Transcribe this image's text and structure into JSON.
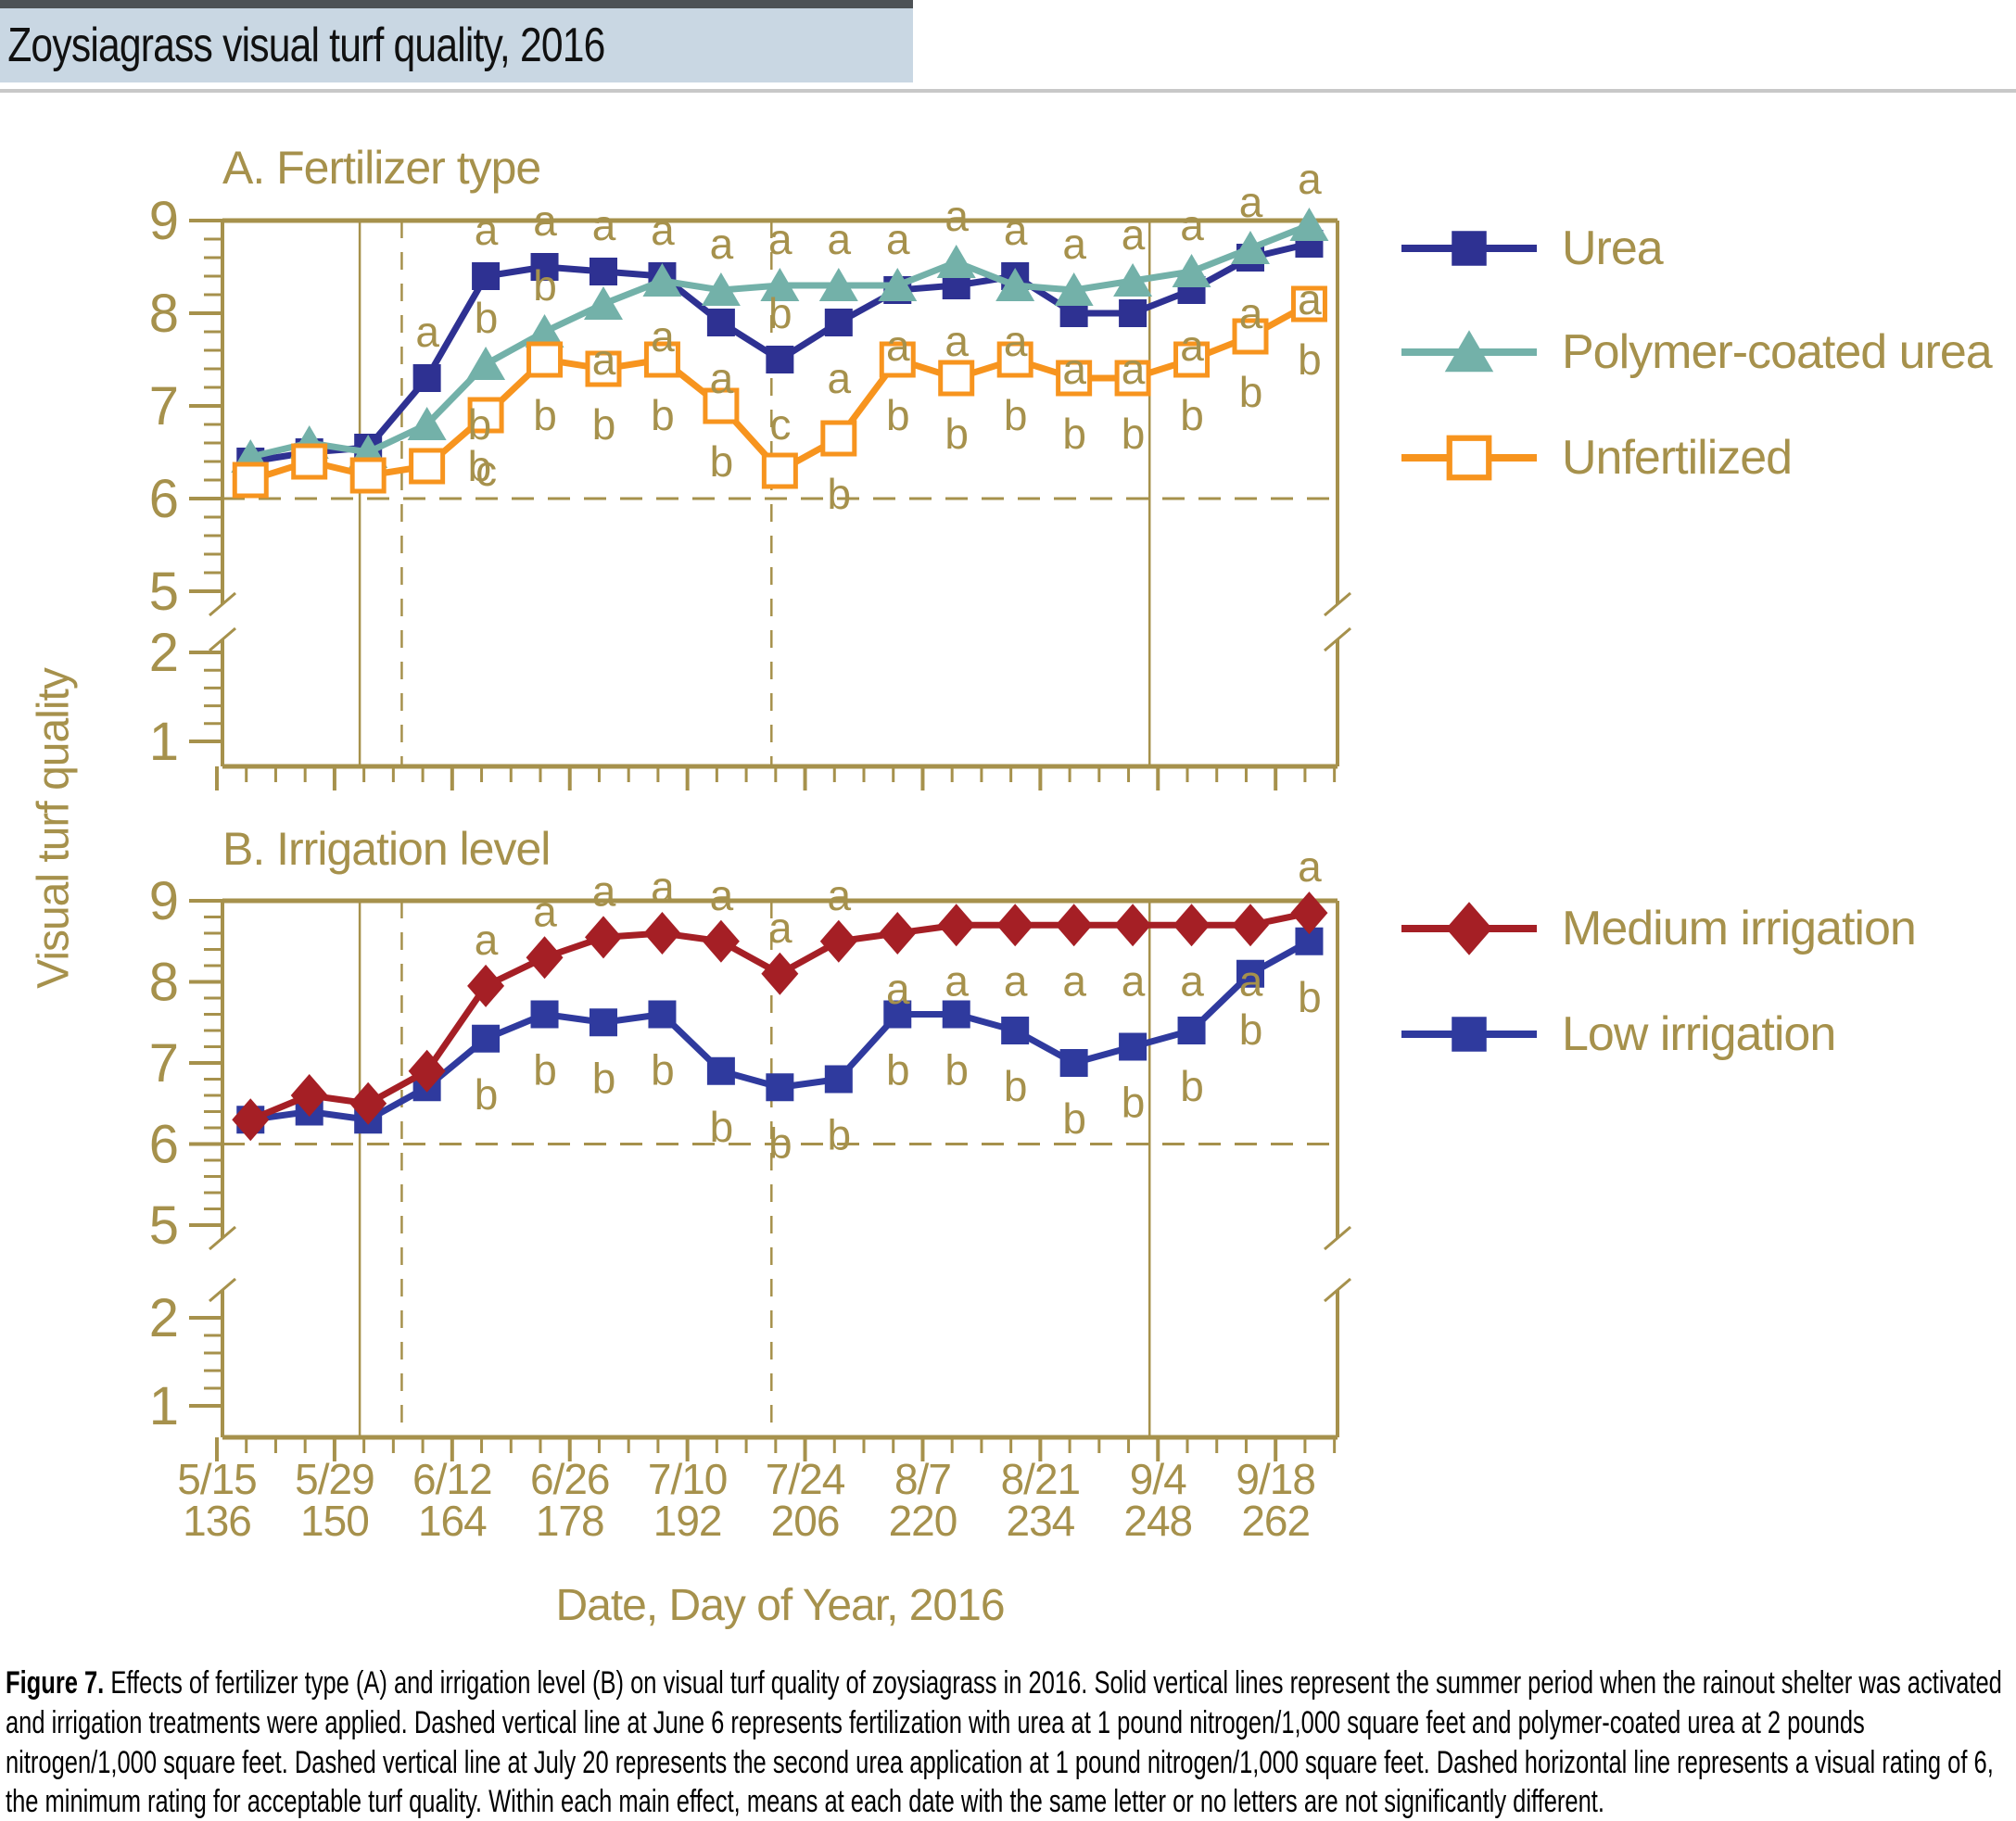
{
  "title": "Zoysiagrass visual turf quality, 2016",
  "y_axis_label": "Visual turf quality",
  "x_axis": {
    "title": "Date, Day of Year, 2016",
    "ticks": [
      {
        "date": "5/15",
        "day": 136
      },
      {
        "date": "5/29",
        "day": 150
      },
      {
        "date": "6/12",
        "day": 164
      },
      {
        "date": "6/26",
        "day": 178
      },
      {
        "date": "7/10",
        "day": 192
      },
      {
        "date": "7/24",
        "day": 206
      },
      {
        "date": "8/7",
        "day": 220
      },
      {
        "date": "8/21",
        "day": 234
      },
      {
        "date": "9/4",
        "day": 248
      },
      {
        "date": "9/18",
        "day": 262
      }
    ]
  },
  "y_ticks": [
    9,
    8,
    7,
    6,
    5,
    2,
    1
  ],
  "colors": {
    "gold": "#a6914c",
    "urea_blue": "#2e3192",
    "polymer_teal": "#73b1a9",
    "unfertilized_orange": "#f7941e",
    "medium_red": "#a51f25",
    "low_blue": "#2f3a9e",
    "title_band_bg": "#c9d7e3",
    "top_bar": "#4d5256",
    "divider": "#c8c8c8",
    "text_black": "#000000"
  },
  "chart_data": [
    {
      "id": "fertilizer",
      "type": "line",
      "title": "A. Fertilizer type",
      "ylabel": "Visual turf quality",
      "ylim_upper": [
        5,
        9
      ],
      "ylim_lower": [
        1,
        2
      ],
      "grid": false,
      "legend_position": "right",
      "x_days": [
        140,
        147,
        154,
        161,
        168,
        175,
        182,
        189,
        196,
        203,
        210,
        217,
        224,
        231,
        238,
        245,
        252,
        259,
        266
      ],
      "reference_lines": {
        "dashed_horizontal_value": 6,
        "solid_vertical_days": [
          153,
          247
        ],
        "dashed_vertical_days": [
          158,
          202
        ]
      },
      "series": [
        {
          "name": "Urea",
          "marker": "filled-square",
          "color": "#2e3192",
          "values": [
            6.4,
            6.5,
            6.55,
            7.3,
            8.4,
            8.5,
            8.45,
            8.4,
            7.9,
            7.5,
            7.9,
            8.25,
            8.3,
            8.4,
            8.0,
            8.0,
            8.25,
            8.6,
            8.75
          ],
          "letters": [
            "",
            "",
            "",
            "a",
            "a",
            "a",
            "a",
            "a",
            "a",
            "b",
            "a",
            "a",
            "a",
            "a",
            "a",
            "a",
            "a",
            "a",
            "a"
          ],
          "letter_pos": [
            "",
            "",
            "",
            "above",
            "above",
            "above",
            "above",
            "above",
            "below",
            "above",
            "below",
            "below",
            "below",
            "above",
            "below",
            "below",
            "below",
            "below",
            "below"
          ]
        },
        {
          "name": "Polymer-coated urea",
          "marker": "filled-triangle",
          "color": "#73b1a9",
          "values": [
            6.45,
            6.6,
            6.5,
            6.8,
            7.45,
            7.8,
            8.1,
            8.35,
            8.25,
            8.3,
            8.3,
            8.3,
            8.55,
            8.3,
            8.25,
            8.35,
            8.45,
            8.7,
            8.95
          ],
          "letters": [
            "",
            "",
            "",
            "b",
            "b",
            "b",
            "a",
            "a",
            "a",
            "a",
            "a",
            "a",
            "a",
            "a",
            "a",
            "a",
            "a",
            "a",
            "a"
          ],
          "letter_pos": [
            "",
            "",
            "",
            "right",
            "above",
            "above",
            "below",
            "below",
            "above",
            "above",
            "above",
            "above",
            "above",
            "below",
            "above",
            "above",
            "above",
            "above",
            "above"
          ]
        },
        {
          "name": "Unfertilized",
          "marker": "open-square",
          "color": "#f7941e",
          "values": [
            6.2,
            6.4,
            6.25,
            6.35,
            6.9,
            7.5,
            7.4,
            7.5,
            7.0,
            6.3,
            6.65,
            7.5,
            7.3,
            7.5,
            7.3,
            7.3,
            7.5,
            7.75,
            8.1
          ],
          "letters": [
            "",
            "",
            "",
            "b",
            "c",
            "b",
            "b",
            "b",
            "b",
            "c",
            "b",
            "b",
            "b",
            "b",
            "b",
            "b",
            "b",
            "b",
            "b"
          ],
          "letter_pos": [
            "",
            "",
            "",
            "right",
            "below",
            "below",
            "below",
            "below",
            "below",
            "above",
            "below",
            "below",
            "below",
            "below",
            "below",
            "below",
            "below",
            "below",
            "below"
          ]
        }
      ]
    },
    {
      "id": "irrigation",
      "type": "line",
      "title": "B. Irrigation level",
      "ylabel": "Visual turf quality",
      "ylim_upper": [
        5,
        9
      ],
      "ylim_lower": [
        1,
        2
      ],
      "grid": false,
      "legend_position": "right",
      "x_days": [
        140,
        147,
        154,
        161,
        168,
        175,
        182,
        189,
        196,
        203,
        210,
        217,
        224,
        231,
        238,
        245,
        252,
        259,
        266
      ],
      "reference_lines": {
        "dashed_horizontal_value": 6,
        "solid_vertical_days": [
          153,
          247
        ],
        "dashed_vertical_days": [
          158,
          202
        ]
      },
      "series": [
        {
          "name": "Medium irrigation",
          "marker": "filled-diamond",
          "color": "#a51f25",
          "values": [
            6.3,
            6.6,
            6.5,
            6.9,
            7.95,
            8.3,
            8.55,
            8.6,
            8.5,
            8.1,
            8.5,
            8.6,
            8.7,
            8.7,
            8.7,
            8.7,
            8.7,
            8.7,
            8.85
          ],
          "letters": [
            "",
            "",
            "",
            "",
            "a",
            "a",
            "a",
            "a",
            "a",
            "a",
            "a",
            "a",
            "a",
            "a",
            "a",
            "a",
            "a",
            "a",
            "a"
          ],
          "letter_pos": [
            "",
            "",
            "",
            "",
            "above",
            "above",
            "above",
            "above",
            "above",
            "above",
            "above",
            "below",
            "below",
            "below",
            "below",
            "below",
            "below",
            "below",
            "above"
          ]
        },
        {
          "name": "Low irrigation",
          "marker": "filled-square",
          "color": "#2f3a9e",
          "values": [
            6.3,
            6.4,
            6.3,
            6.7,
            7.3,
            7.6,
            7.5,
            7.6,
            6.9,
            6.7,
            6.8,
            7.6,
            7.6,
            7.4,
            7.0,
            7.2,
            7.4,
            8.1,
            8.5
          ],
          "letters": [
            "",
            "",
            "",
            "",
            "b",
            "b",
            "b",
            "b",
            "b",
            "b",
            "b",
            "b",
            "b",
            "b",
            "b",
            "b",
            "b",
            "b",
            "b"
          ],
          "letter_pos": [
            "",
            "",
            "",
            "",
            "below",
            "below",
            "below",
            "below",
            "below",
            "below",
            "below",
            "below",
            "below",
            "below",
            "below",
            "below",
            "below",
            "below",
            "below"
          ]
        }
      ]
    }
  ],
  "caption": {
    "label": "Figure 7.",
    "text": "Effects of fertilizer type (A) and irrigation level (B) on visual turf quality of zoysiagrass in 2016. Solid vertical lines represent the summer period when the rainout shelter was activated and irrigation treatments were applied. Dashed vertical line at June 6 represents fertilization with urea at 1 pound nitrogen/1,000 square feet and polymer-coated urea at 2 pounds nitrogen/1,000 square feet. Dashed vertical line at July 20 represents the second urea application at 1 pound nitrogen/1,000 square feet. Dashed horizontal line represents a visual rating of 6, the minimum rating for acceptable turf quality. Within each main effect, means at each date with the same letter or no letters are not significantly different."
  }
}
